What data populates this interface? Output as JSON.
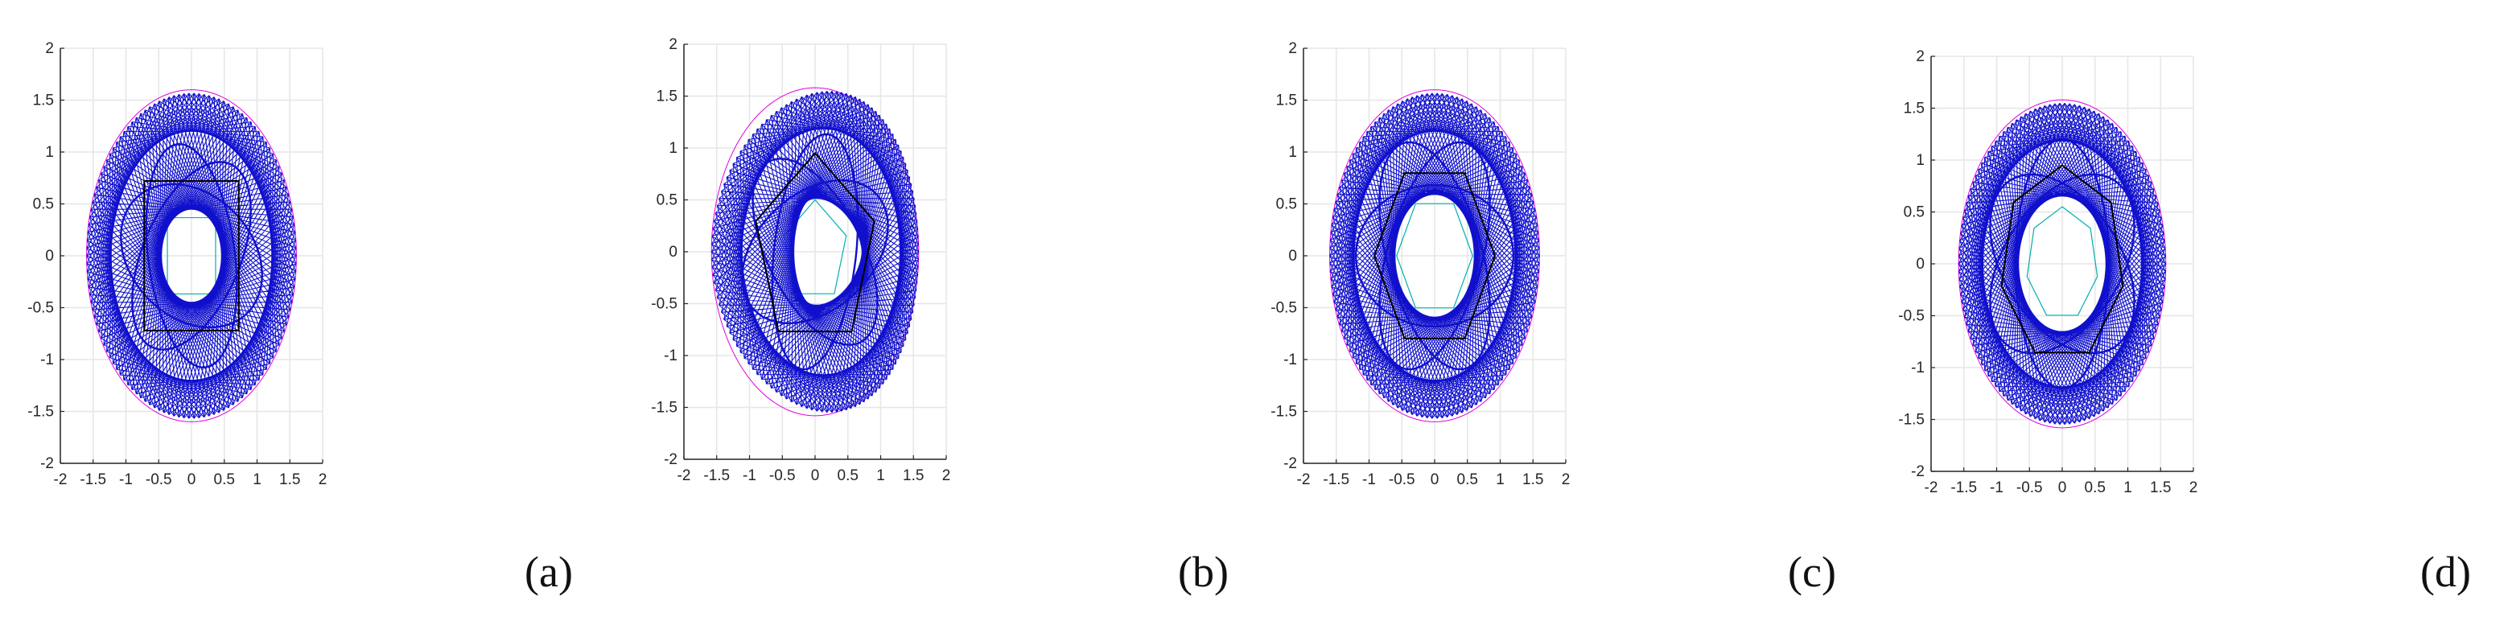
{
  "chart_data": [
    {
      "type": "line",
      "label": "(a)",
      "xlim": [
        -2,
        2
      ],
      "ylim": [
        -2,
        2
      ],
      "xticks": [
        "-2",
        "-1.5",
        "-1",
        "-0.5",
        "0",
        "0.5",
        "1",
        "1.5",
        "2"
      ],
      "yticks": [
        "2",
        "1.5",
        "1",
        "0.5",
        "0",
        "-0.5",
        "-1",
        "-1.5",
        "-2"
      ],
      "grid": true,
      "curves": {
        "outer_radius": 1.6,
        "inner_radius": 0.52,
        "inner_sides": 4,
        "inner_rotation_deg": 45,
        "outer_strokes": 130,
        "outer_step": 53,
        "skew_deg": 0,
        "polygon": {
          "sides": 4,
          "radius": 1.02,
          "rotation_deg": 45
        },
        "mid_ellipse_a": 1.1,
        "mid_ellipse_b": 1.05
      },
      "colors": {
        "strands": "#1010cc",
        "polygon": "#000000",
        "outer": "#e000e0",
        "inner": "#00b0b0"
      }
    },
    {
      "type": "line",
      "label": "(b)",
      "xlim": [
        -2,
        2
      ],
      "ylim": [
        -2,
        2
      ],
      "xticks": [
        "-2",
        "-1.5",
        "-1",
        "-0.5",
        "0",
        "0.5",
        "1",
        "1.5",
        "2"
      ],
      "yticks": [
        "2",
        "1.5",
        "1",
        "0.5",
        "0",
        "-0.5",
        "-1",
        "-1.5",
        "-2"
      ],
      "grid": true,
      "curves": {
        "outer_radius": 1.58,
        "inner_radius": 0.5,
        "inner_sides": 5,
        "inner_rotation_deg": 18,
        "outer_strokes": 130,
        "outer_step": 51,
        "skew_deg": -8,
        "polygon": {
          "sides": 5,
          "radius": 0.95,
          "rotation_deg": 18
        },
        "mid_ellipse_a": 1.15,
        "mid_ellipse_b": 1.0
      },
      "colors": {
        "strands": "#1010cc",
        "polygon": "#000000",
        "outer": "#e000e0",
        "inner": "#00b0b0"
      }
    },
    {
      "type": "line",
      "label": "(c)",
      "xlim": [
        -2,
        2
      ],
      "ylim": [
        -2,
        2
      ],
      "xticks": [
        "-2",
        "-1.5",
        "-1",
        "-0.5",
        "0",
        "0.5",
        "1",
        "1.5",
        "2"
      ],
      "yticks": [
        "2",
        "1.5",
        "1",
        "0.5",
        "0",
        "-0.5",
        "-1",
        "-1.5",
        "-2"
      ],
      "grid": true,
      "curves": {
        "outer_radius": 1.6,
        "inner_radius": 0.58,
        "inner_sides": 6,
        "inner_rotation_deg": 0,
        "outer_strokes": 130,
        "outer_step": 49,
        "skew_deg": 0,
        "polygon": {
          "sides": 6,
          "radius": 0.92,
          "rotation_deg": 0
        },
        "mid_ellipse_a": 1.2,
        "mid_ellipse_b": 1.1
      },
      "colors": {
        "strands": "#1010cc",
        "polygon": "#000000",
        "outer": "#e000e0",
        "inner": "#00b0b0"
      }
    },
    {
      "type": "line",
      "label": "(d)",
      "xlim": [
        -2,
        2
      ],
      "ylim": [
        -2,
        2
      ],
      "xticks": [
        "-2",
        "-1.5",
        "-1",
        "-0.5",
        "0",
        "0.5",
        "1",
        "1.5",
        "2"
      ],
      "yticks": [
        "2",
        "1.5",
        "1",
        "0.5",
        "0",
        "-0.5",
        "-1",
        "-1.5",
        "-2"
      ],
      "grid": true,
      "curves": {
        "outer_radius": 1.58,
        "inner_radius": 0.55,
        "inner_sides": 7,
        "inner_rotation_deg": 90,
        "outer_strokes": 130,
        "outer_step": 47,
        "skew_deg": 0,
        "polygon": {
          "sides": 7,
          "radius": 0.95,
          "rotation_deg": 90
        },
        "mid_ellipse_a": 1.2,
        "mid_ellipse_b": 1.15
      },
      "colors": {
        "strands": "#1010cc",
        "polygon": "#000000",
        "outer": "#e000e0",
        "inner": "#00b0b0"
      }
    }
  ]
}
